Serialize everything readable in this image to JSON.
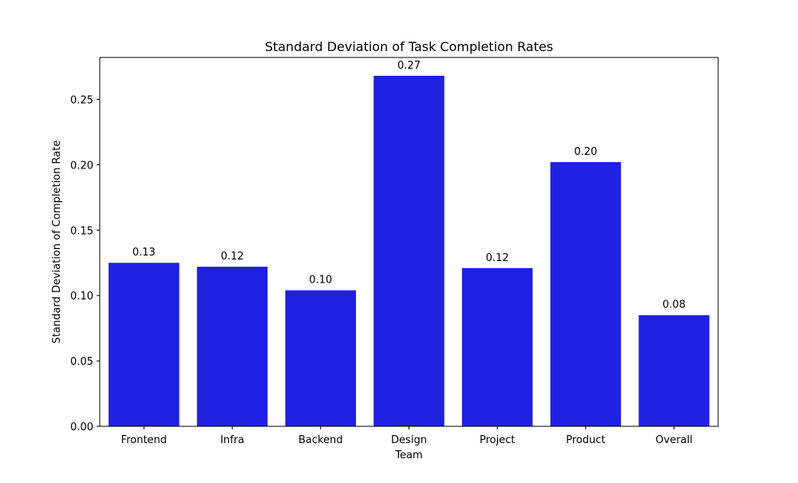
{
  "chart_data": {
    "type": "bar",
    "title": "Standard Deviation of Task Completion Rates",
    "xlabel": "Team",
    "ylabel": "Standard Deviation of Completion Rate",
    "categories": [
      "Frontend",
      "Infra",
      "Backend",
      "Design",
      "Project",
      "Product",
      "Overall"
    ],
    "values": [
      0.125,
      0.122,
      0.104,
      0.268,
      0.121,
      0.202,
      0.085
    ],
    "data_labels": [
      "0.13",
      "0.12",
      "0.10",
      "0.27",
      "0.12",
      "0.20",
      "0.08"
    ],
    "ylim": [
      0,
      0.282
    ],
    "yticks": [
      0,
      0.05,
      0.1,
      0.15,
      0.2,
      0.25
    ],
    "ytick_labels": [
      "0.00",
      "0.05",
      "0.10",
      "0.15",
      "0.20",
      "0.25"
    ],
    "bar_color": "#2020e0",
    "grid": false,
    "legend": "none"
  }
}
